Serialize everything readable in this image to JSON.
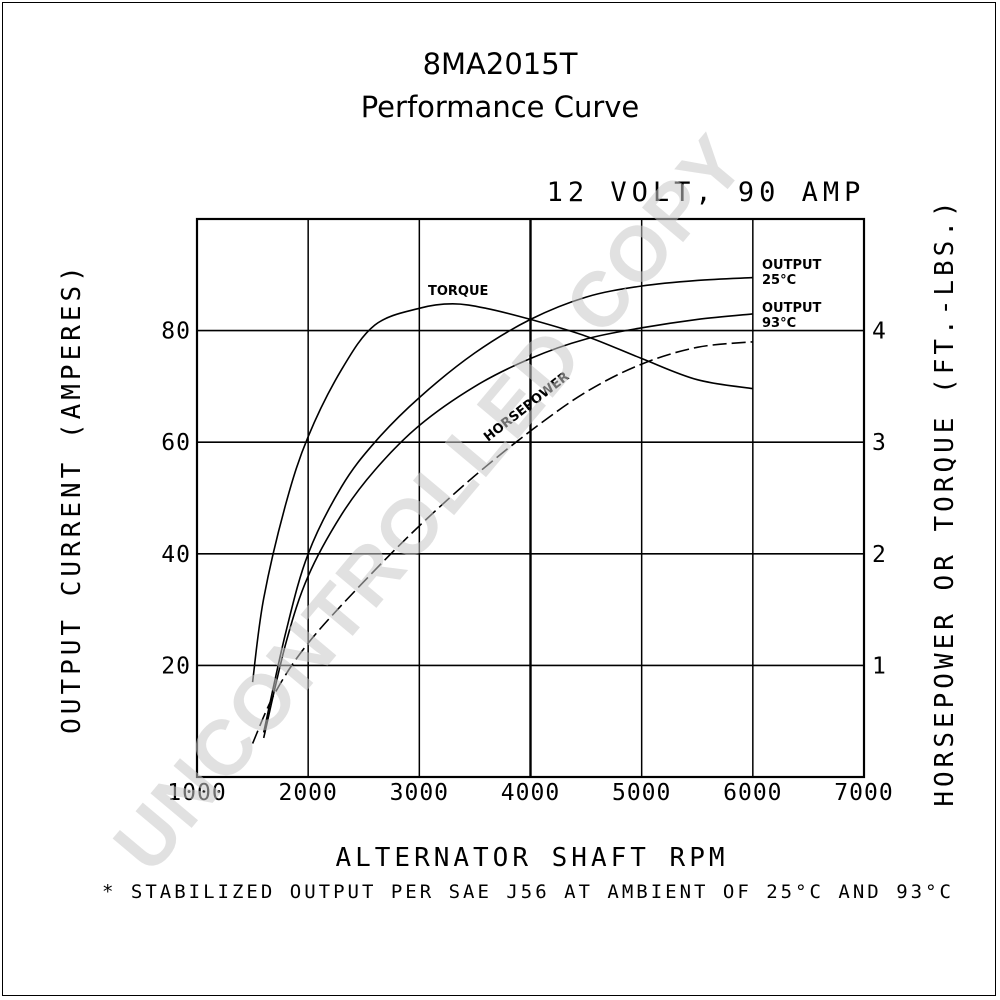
{
  "chart_data": {
    "type": "line",
    "title": "8MA2015T",
    "subtitle": "Performance Curve",
    "rating": "12 VOLT, 90 AMP",
    "xlabel": "ALTERNATOR SHAFT RPM",
    "ylabel": "OUTPUT CURRENT (AMPERES)",
    "y2label": "HORSEPOWER OR TORQUE (FT.-LBS.)",
    "footnote": "* STABILIZED OUTPUT PER SAE J56 AT AMBIENT OF 25°C AND 93°C",
    "watermark": "UNCONTROLLED COPY",
    "xlim": [
      1000,
      7000
    ],
    "ylim": [
      0,
      100
    ],
    "y2lim": [
      0,
      5
    ],
    "x_ticks": [
      1000,
      2000,
      3000,
      4000,
      5000,
      6000,
      7000
    ],
    "x_tick_labels": [
      "1000",
      "2000",
      "3000",
      "4000",
      "5000",
      "6000",
      "7000"
    ],
    "y_ticks": [
      20,
      40,
      60,
      80
    ],
    "y_tick_labels": [
      "20",
      "40",
      "60",
      "80"
    ],
    "y2_ticks": [
      1,
      2,
      3,
      4
    ],
    "y2_tick_labels": [
      "1",
      "2",
      "3",
      "4"
    ],
    "grid": true,
    "series": [
      {
        "name": "OUTPUT 25°C",
        "label_lines": [
          "OUTPUT",
          "25°C"
        ],
        "axis": "left",
        "style": "solid",
        "x": [
          1600,
          1800,
          2000,
          2300,
          2600,
          3000,
          3500,
          4000,
          4500,
          5000,
          5500,
          6000
        ],
        "y": [
          8,
          26,
          40,
          52,
          60,
          68,
          76,
          82,
          86,
          88,
          89,
          89.5
        ]
      },
      {
        "name": "OUTPUT 93°C",
        "label_lines": [
          "OUTPUT",
          "93°C"
        ],
        "axis": "left",
        "style": "solid",
        "x": [
          1600,
          1800,
          2000,
          2300,
          2600,
          3000,
          3500,
          4000,
          4500,
          5000,
          5500,
          6000
        ],
        "y": [
          7,
          24,
          36,
          47,
          55,
          63,
          70,
          75,
          78.5,
          80.5,
          82,
          83
        ]
      },
      {
        "name": "TORQUE",
        "label_lines": [
          "TORQUE"
        ],
        "axis": "right",
        "style": "solid",
        "x": [
          1500,
          1600,
          1800,
          2000,
          2300,
          2600,
          3000,
          3300,
          3600,
          4000,
          4500,
          5000,
          5500,
          6000
        ],
        "y": [
          0.85,
          1.6,
          2.45,
          3.05,
          3.65,
          4.05,
          4.2,
          4.24,
          4.2,
          4.1,
          3.95,
          3.75,
          3.56,
          3.48
        ]
      },
      {
        "name": "HORSEPOWER",
        "label_lines": [
          "HORSEPOWER"
        ],
        "axis": "right",
        "style": "dashed",
        "x": [
          1500,
          1700,
          2000,
          2500,
          3000,
          3500,
          4000,
          4500,
          5000,
          5500,
          6000
        ],
        "y": [
          0.3,
          0.75,
          1.2,
          1.75,
          2.25,
          2.7,
          3.1,
          3.45,
          3.7,
          3.85,
          3.9
        ]
      }
    ]
  }
}
